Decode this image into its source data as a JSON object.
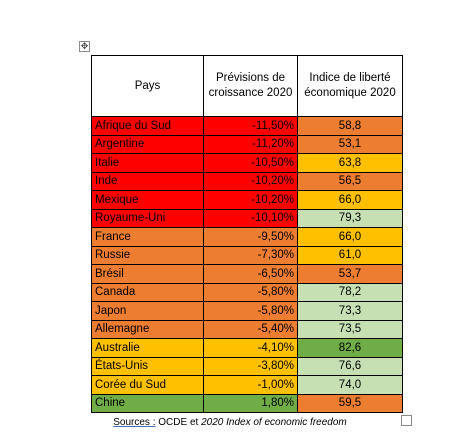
{
  "table": {
    "headers": {
      "pays": "Pays",
      "prevision": "Prévisions de croissance 2020",
      "indice": "Indice de liberté économique 2020"
    },
    "rows": [
      {
        "pays": "Afrique du Sud",
        "prevision": "-11,50%",
        "indice": "58,8",
        "pays_color": "#ff0000",
        "prev_color": "#ff0000",
        "idx_color": "#ed7d31"
      },
      {
        "pays": "Argentine",
        "prevision": "-11,20%",
        "indice": "53,1",
        "pays_color": "#ff0000",
        "prev_color": "#ff0000",
        "idx_color": "#ed7d31"
      },
      {
        "pays": "Italie",
        "prevision": "-10,50%",
        "indice": "63,8",
        "pays_color": "#ff0000",
        "prev_color": "#ff0000",
        "idx_color": "#ffc000"
      },
      {
        "pays": "Inde",
        "prevision": "-10,20%",
        "indice": "56,5",
        "pays_color": "#ff0000",
        "prev_color": "#ff0000",
        "idx_color": "#ed7d31"
      },
      {
        "pays": "Mexique",
        "prevision": "-10,20%",
        "indice": "66,0",
        "pays_color": "#ff0000",
        "prev_color": "#ff0000",
        "idx_color": "#ffc000"
      },
      {
        "pays": "Royaume-Uni",
        "prevision": "-10,10%",
        "indice": "79,3",
        "pays_color": "#ff0000",
        "prev_color": "#ff0000",
        "idx_color": "#c6e0b4"
      },
      {
        "pays": "France",
        "prevision": "-9,50%",
        "indice": "66,0",
        "pays_color": "#ed7d31",
        "prev_color": "#ed7d31",
        "idx_color": "#ffc000"
      },
      {
        "pays": "Russie",
        "prevision": "-7,30%",
        "indice": "61,0",
        "pays_color": "#ed7d31",
        "prev_color": "#ed7d31",
        "idx_color": "#ffc000"
      },
      {
        "pays": "Brésil",
        "prevision": "-6,50%",
        "indice": "53,7",
        "pays_color": "#ed7d31",
        "prev_color": "#ed7d31",
        "idx_color": "#ed7d31"
      },
      {
        "pays": "Canada",
        "prevision": "-5,80%",
        "indice": "78,2",
        "pays_color": "#ed7d31",
        "prev_color": "#ed7d31",
        "idx_color": "#c6e0b4"
      },
      {
        "pays": "Japon",
        "prevision": "-5,80%",
        "indice": "73,3",
        "pays_color": "#ed7d31",
        "prev_color": "#ed7d31",
        "idx_color": "#c6e0b4"
      },
      {
        "pays": "Allemagne",
        "prevision": "-5,40%",
        "indice": "73,5",
        "pays_color": "#ed7d31",
        "prev_color": "#ed7d31",
        "idx_color": "#c6e0b4"
      },
      {
        "pays": "Australie",
        "prevision": "-4,10%",
        "indice": "82,6",
        "pays_color": "#ffc000",
        "prev_color": "#ffc000",
        "idx_color": "#70ad47"
      },
      {
        "pays": "États-Unis",
        "prevision": "-3,80%",
        "indice": "76,6",
        "pays_color": "#ffc000",
        "prev_color": "#ffc000",
        "idx_color": "#c6e0b4"
      },
      {
        "pays": "Corée du Sud",
        "prevision": "-1,00%",
        "indice": "74,0",
        "pays_color": "#ffc000",
        "prev_color": "#ffc000",
        "idx_color": "#c6e0b4"
      },
      {
        "pays": "Chine",
        "prevision": "1,80%",
        "indice": "59,5",
        "pays_color": "#70ad47",
        "prev_color": "#70ad47",
        "idx_color": "#ed7d31"
      }
    ]
  },
  "caption": {
    "sources_label": "Sources :",
    "text_mid": " OCDE et ",
    "text_italic": "2020 Index of economic freedom"
  }
}
